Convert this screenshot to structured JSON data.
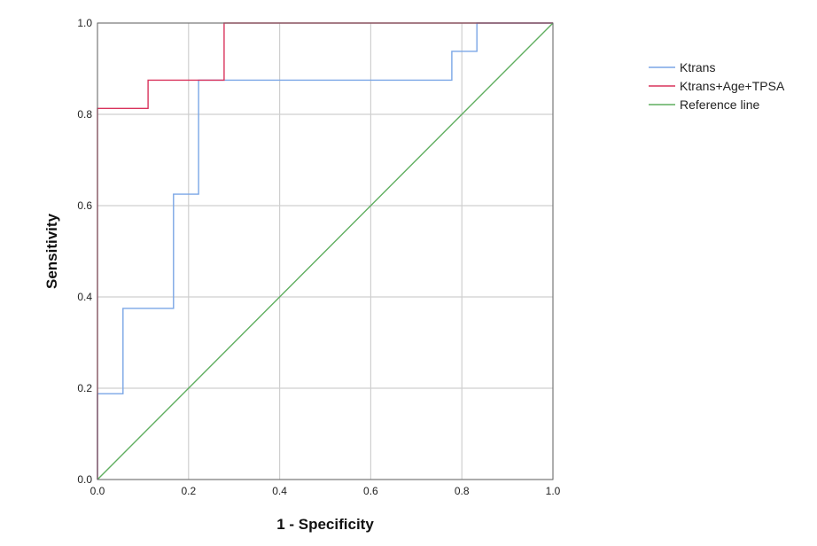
{
  "chart_data": {
    "type": "line",
    "title": "",
    "xlabel": "1 - Specificity",
    "ylabel": "Sensitivity",
    "xlim": [
      0,
      1
    ],
    "ylim": [
      0,
      1
    ],
    "xticks": [
      "0.0",
      "0.2",
      "0.4",
      "0.6",
      "0.8",
      "1.0"
    ],
    "yticks": [
      "0.0",
      "0.2",
      "0.4",
      "0.6",
      "0.8",
      "1.0"
    ],
    "grid": true,
    "legend_position": "top-right outside plot",
    "series": [
      {
        "name": "Ktrans",
        "color": "#7aa6e6",
        "x": [
          0,
          0,
          0.056,
          0.056,
          0.167,
          0.167,
          0.222,
          0.222,
          0.778,
          0.778,
          0.833,
          0.833,
          1.0
        ],
        "y": [
          0,
          0.188,
          0.188,
          0.375,
          0.375,
          0.625,
          0.625,
          0.875,
          0.875,
          0.938,
          0.938,
          1.0,
          1.0
        ]
      },
      {
        "name": "Ktrans+Age+TPSA",
        "color": "#d9335c",
        "x": [
          0,
          0,
          0.111,
          0.111,
          0.278,
          0.278,
          1.0
        ],
        "y": [
          0,
          0.813,
          0.813,
          0.875,
          0.875,
          1.0,
          1.0
        ]
      },
      {
        "name": "Reference line",
        "color": "#5fae5f",
        "x": [
          0,
          1
        ],
        "y": [
          0,
          1
        ]
      }
    ]
  }
}
